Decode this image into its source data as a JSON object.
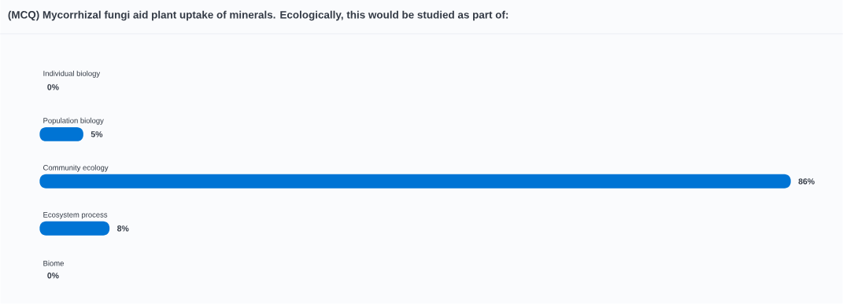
{
  "chart_data": {
    "type": "bar",
    "orientation": "horizontal",
    "title": "(MCQ) Mycorrhizal fungi aid plant uptake of minerals. Ecologically, this would be studied as part of:",
    "categories": [
      "Individual biology",
      "Population biology",
      "Community ecology",
      "Ecosystem process",
      "Biome"
    ],
    "values": [
      0,
      5,
      86,
      8,
      0
    ],
    "value_labels": [
      "0%",
      "5%",
      "86%",
      "8%",
      "0%"
    ],
    "color": "#0074d4"
  }
}
